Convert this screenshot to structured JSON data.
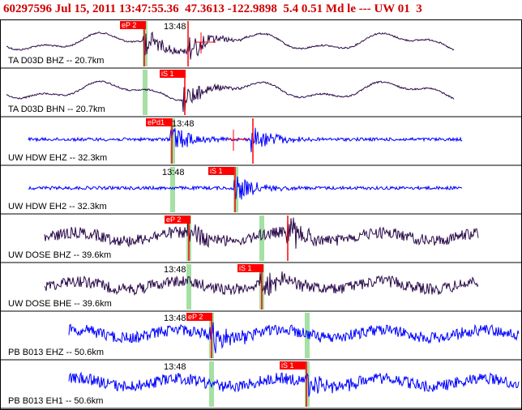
{
  "header": {
    "event_id": "60297596",
    "date": "Jul 15, 2011",
    "time": "13:47:55.36",
    "lat": "47.3613",
    "lon": "-122.9898",
    "depth": "5.4",
    "magnitude": "0.51",
    "mag_type": "Md",
    "extra": "le --- UW 01",
    "trailing": "3"
  },
  "colors": {
    "header_text": "#d00000",
    "trace_dark": "#2a0a4a",
    "trace_blue": "#0000ff",
    "phase_tag": "#ff0000",
    "pick_line": "#ff0000",
    "window_band": "#8fd88f",
    "separator": "#000000"
  },
  "panels": [
    {
      "label": "TA D03D BHZ -- 20.7km",
      "time_label": "13:48",
      "phase": "eP 2",
      "color": "dark",
      "style": "longwave"
    },
    {
      "label": "TA D03D BHN -- 20.7km",
      "time_label": "",
      "phase": "iS 1",
      "color": "dark",
      "style": "longwave"
    },
    {
      "label": "UW HDW EHZ -- 32.3km",
      "time_label": "13:48",
      "phase": "ePd1",
      "color": "blue",
      "style": "flat"
    },
    {
      "label": "UW HDW EH2 -- 32.3km",
      "time_label": "13:48",
      "phase": "iS 1",
      "color": "blue",
      "style": "flat"
    },
    {
      "label": "UW DOSE BHZ -- 39.6km",
      "time_label": "",
      "phase": "eP 2",
      "color": "dark",
      "style": "noisy"
    },
    {
      "label": "UW DOSE BHE -- 39.6km",
      "time_label": "13:48",
      "phase": "iS 1",
      "color": "dark",
      "style": "noisy"
    },
    {
      "label": "PB B013 EHZ -- 50.6km",
      "time_label": "13:48",
      "phase": "eP 2",
      "color": "blue",
      "style": "noisy"
    },
    {
      "label": "PB B013 EH1 -- 50.6km",
      "time_label": "13:48",
      "phase": "iS 1",
      "color": "blue",
      "style": "noisy"
    }
  ]
}
